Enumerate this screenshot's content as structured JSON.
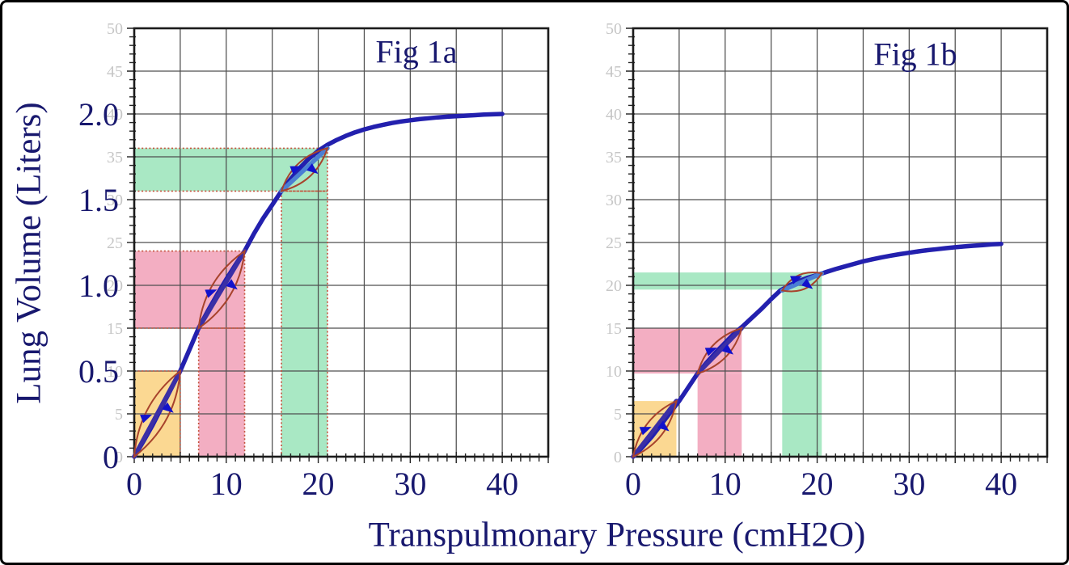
{
  "figure": {
    "background": "#ffffff",
    "border_color": "#000000",
    "text_color": "#18186e",
    "grid_color": "#4f4f4f",
    "spine_color": "#1b1b1b",
    "x_axis_title": "Transpulmonary Pressure (cmH2O)",
    "y_axis_title": "Lung Volume (Liters)"
  },
  "chart_data": [
    {
      "type": "line",
      "title": "Fig 1a",
      "xlabel": "Transpulmonary Pressure (cmH2O)",
      "ylabel": "Lung Volume (Liters)",
      "xlim": [
        0,
        45
      ],
      "ylim_liters": [
        0,
        2.5
      ],
      "grid": true,
      "grid_step_x": 5,
      "grid_step_y_liters": 0.25,
      "x_tick_labels": [
        {
          "p": 0,
          "label": "0"
        },
        {
          "p": 10,
          "label": "10"
        },
        {
          "p": 20,
          "label": "20"
        },
        {
          "p": 30,
          "label": "30"
        },
        {
          "p": 40,
          "label": "40"
        }
      ],
      "y_tick_labels_liters": [
        {
          "v": 0,
          "label": "0"
        },
        {
          "v": 0.5,
          "label": "0.5"
        },
        {
          "v": 1,
          "label": "1.0"
        },
        {
          "v": 1.5,
          "label": "1.5"
        },
        {
          "v": 2,
          "label": "2.0"
        }
      ],
      "y_secondary_labels": [
        {
          "g": 0,
          "label": "0"
        },
        {
          "g": 5,
          "label": "5"
        },
        {
          "g": 10,
          "label": "10"
        },
        {
          "g": 15,
          "label": "15"
        },
        {
          "g": 20,
          "label": "20"
        },
        {
          "g": 25,
          "label": "25"
        },
        {
          "g": 30,
          "label": "30"
        },
        {
          "g": 35,
          "label": "35"
        },
        {
          "g": 40,
          "label": "40"
        },
        {
          "g": 45,
          "label": "45"
        },
        {
          "g": 50,
          "label": "50"
        }
      ],
      "curve_color": "#2320ae",
      "curve": [
        [
          0,
          0
        ],
        [
          1,
          0.09
        ],
        [
          2,
          0.185
        ],
        [
          3,
          0.29
        ],
        [
          4,
          0.395
        ],
        [
          5,
          0.5
        ],
        [
          6,
          0.625
        ],
        [
          7,
          0.75
        ],
        [
          8,
          0.85
        ],
        [
          9,
          0.945
        ],
        [
          10,
          1.035
        ],
        [
          11,
          1.12
        ],
        [
          12,
          1.2
        ],
        [
          13,
          1.3
        ],
        [
          14,
          1.39
        ],
        [
          15,
          1.47
        ],
        [
          16,
          1.55
        ],
        [
          17,
          1.62
        ],
        [
          18,
          1.685
        ],
        [
          19,
          1.74
        ],
        [
          20,
          1.785
        ],
        [
          21,
          1.82
        ],
        [
          22,
          1.848
        ],
        [
          23,
          1.872
        ],
        [
          24,
          1.893
        ],
        [
          25,
          1.91
        ],
        [
          26,
          1.924
        ],
        [
          27,
          1.936
        ],
        [
          28,
          1.947
        ],
        [
          29,
          1.956
        ],
        [
          30,
          1.963
        ],
        [
          31,
          1.97
        ],
        [
          32,
          1.975
        ],
        [
          33,
          1.98
        ],
        [
          34,
          1.984
        ],
        [
          35,
          1.987
        ],
        [
          36,
          1.99
        ],
        [
          37,
          1.993
        ],
        [
          38,
          1.996
        ],
        [
          39,
          1.998
        ],
        [
          40,
          2.0
        ]
      ],
      "bands": [
        {
          "name": "orange",
          "fill": "#fbd892",
          "rects": [
            [
              0,
              0,
              5,
              0.5
            ]
          ]
        },
        {
          "name": "pink",
          "fill": "#f3aec2",
          "rects": [
            [
              0,
              0.75,
              12,
              1.2
            ],
            [
              7,
              0,
              12,
              0.75
            ]
          ]
        },
        {
          "name": "green",
          "fill": "#a9e8c4",
          "rects": [
            [
              0,
              1.55,
              21,
              1.8
            ],
            [
              16,
              0,
              21,
              1.55
            ]
          ]
        }
      ],
      "band_outline": true,
      "outline_color": "#c4503a",
      "loop_color": "#a8432c",
      "arrow_color": "#1212cc",
      "loops": [
        {
          "from": [
            0,
            0
          ],
          "to": [
            5,
            0.5
          ],
          "chord_color": "#3b2fa6"
        },
        {
          "from": [
            7,
            0.75
          ],
          "to": [
            12,
            1.2
          ],
          "chord_color": "#3b2fa6"
        },
        {
          "from": [
            16,
            1.55
          ],
          "to": [
            21,
            1.8
          ],
          "chord_color": "#4b7fd4"
        }
      ]
    },
    {
      "type": "line",
      "title": "Fig 1b",
      "xlabel": "Transpulmonary Pressure (cmH2O)",
      "ylabel": "Lung Volume (Liters)",
      "xlim": [
        0,
        45
      ],
      "ylim_liters": [
        0,
        2.5
      ],
      "grid": true,
      "grid_step_x": 5,
      "grid_step_y_liters": 0.25,
      "x_tick_labels": [
        {
          "p": 0,
          "label": "0"
        },
        {
          "p": 10,
          "label": "10"
        },
        {
          "p": 20,
          "label": "20"
        },
        {
          "p": 30,
          "label": "30"
        },
        {
          "p": 40,
          "label": "40"
        }
      ],
      "y_tick_labels_liters": [],
      "y_secondary_labels": [
        {
          "g": 0,
          "label": "0"
        },
        {
          "g": 5,
          "label": "5"
        },
        {
          "g": 10,
          "label": "10"
        },
        {
          "g": 15,
          "label": "15"
        },
        {
          "g": 20,
          "label": "20"
        },
        {
          "g": 25,
          "label": "25"
        },
        {
          "g": 30,
          "label": "30"
        },
        {
          "g": 35,
          "label": "35"
        },
        {
          "g": 40,
          "label": "40"
        },
        {
          "g": 45,
          "label": "45"
        },
        {
          "g": 50,
          "label": "50"
        }
      ],
      "curve_color": "#2320ae",
      "curve": [
        [
          0,
          0
        ],
        [
          1,
          0.055
        ],
        [
          2,
          0.115
        ],
        [
          3,
          0.185
        ],
        [
          4,
          0.255
        ],
        [
          5,
          0.325
        ],
        [
          6,
          0.405
        ],
        [
          7,
          0.485
        ],
        [
          8,
          0.55
        ],
        [
          9,
          0.61
        ],
        [
          10,
          0.665
        ],
        [
          11,
          0.72
        ],
        [
          12,
          0.765
        ],
        [
          13,
          0.815
        ],
        [
          14,
          0.865
        ],
        [
          15,
          0.92
        ],
        [
          16,
          0.97
        ],
        [
          17,
          1.0
        ],
        [
          18,
          1.025
        ],
        [
          19,
          1.045
        ],
        [
          20,
          1.06
        ],
        [
          21,
          1.078
        ],
        [
          22,
          1.095
        ],
        [
          23,
          1.11
        ],
        [
          24,
          1.125
        ],
        [
          25,
          1.14
        ],
        [
          26,
          1.152
        ],
        [
          27,
          1.163
        ],
        [
          28,
          1.173
        ],
        [
          29,
          1.182
        ],
        [
          30,
          1.19
        ],
        [
          31,
          1.198
        ],
        [
          32,
          1.205
        ],
        [
          33,
          1.211
        ],
        [
          34,
          1.217
        ],
        [
          35,
          1.222
        ],
        [
          36,
          1.227
        ],
        [
          37,
          1.231
        ],
        [
          38,
          1.235
        ],
        [
          39,
          1.239
        ],
        [
          40,
          1.242
        ]
      ],
      "bands": [
        {
          "name": "orange",
          "fill": "#fbd892",
          "rects": [
            [
              0,
              0,
              4.7,
              0.325
            ]
          ]
        },
        {
          "name": "pink",
          "fill": "#f3aec2",
          "rects": [
            [
              0,
              0.485,
              11.8,
              0.75
            ],
            [
              7,
              0,
              11.8,
              0.485
            ]
          ]
        },
        {
          "name": "green",
          "fill": "#a9e8c4",
          "rects": [
            [
              0,
              0.975,
              20.5,
              1.075
            ],
            [
              16.2,
              0,
              20.5,
              0.975
            ]
          ]
        }
      ],
      "band_outline": false,
      "outline_color": "#c4503a",
      "loop_color": "#a8432c",
      "arrow_color": "#1212cc",
      "loops": [
        {
          "from": [
            0,
            0
          ],
          "to": [
            4.7,
            0.325
          ],
          "chord_color": "#3b2fa6"
        },
        {
          "from": [
            7,
            0.485
          ],
          "to": [
            11.8,
            0.75
          ],
          "chord_color": "#3b2fa6"
        },
        {
          "from": [
            16.2,
            0.97
          ],
          "to": [
            20.5,
            1.07
          ],
          "chord_color": "#4b7fd4"
        }
      ]
    }
  ]
}
